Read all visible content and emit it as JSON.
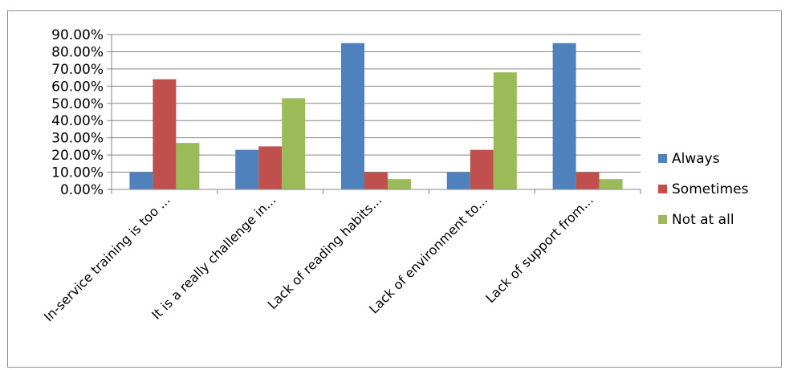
{
  "chart_data": {
    "type": "bar",
    "categories": [
      "In-service training is too ...",
      "It is a really challenge in...",
      "Lack of reading habits...",
      "Lack of environment to...",
      "Lack of support from..."
    ],
    "series": [
      {
        "name": "Always",
        "color": "#4f81bd",
        "values": [
          10,
          23,
          85,
          10,
          85
        ]
      },
      {
        "name": "Sometimes",
        "color": "#c0504d",
        "values": [
          64,
          25,
          10,
          23,
          10
        ]
      },
      {
        "name": "Not at all",
        "color": "#9bbb59",
        "values": [
          27,
          53,
          6,
          68,
          6
        ]
      }
    ],
    "y_ticks": [
      "0.00%",
      "10.00%",
      "20.00%",
      "30.00%",
      "40.00%",
      "50.00%",
      "60.00%",
      "70.00%",
      "80.00%",
      "90.00%"
    ],
    "ylim": [
      0,
      90
    ],
    "y_unit": "percent",
    "gridlines": true,
    "legend_position": "right",
    "title": "",
    "xlabel": "",
    "ylabel": ""
  }
}
